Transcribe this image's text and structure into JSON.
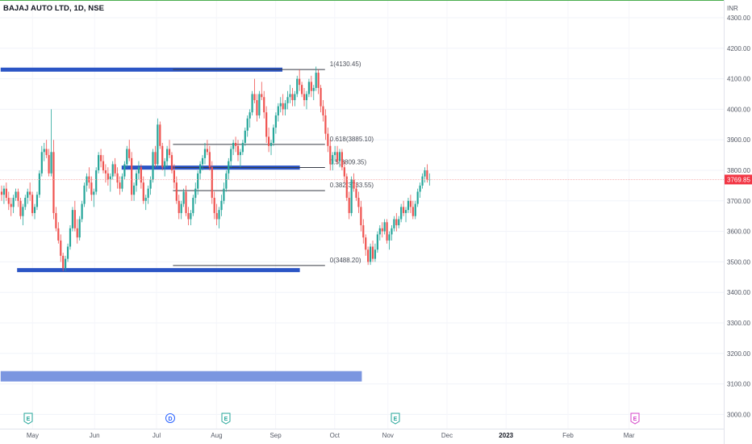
{
  "symbol_title": "BAJAJ AUTO LTD, 1D, NSE",
  "currency": "INR",
  "current_price": "3769.85",
  "colors": {
    "up": "#26a69a",
    "down": "#ef5350",
    "level_line": "#2b55c5",
    "lower_band": "#7b96e0",
    "fib_line": "#363a45",
    "price_line": "#f4a0a0",
    "price_badge": "#f23645",
    "event_green": "#26a69a",
    "event_blue": "#2962ff",
    "event_pink": "#d445c8"
  },
  "chart_data": {
    "type": "candlestick",
    "y_axis": {
      "min": 2980,
      "max": 4360,
      "ticks": [
        4300,
        4200,
        4100,
        4000,
        3900,
        3800,
        3700,
        3600,
        3500,
        3400,
        3300,
        3200,
        3100,
        3000
      ],
      "tick_labels": [
        "4300.00",
        "4200.00",
        "4100.00",
        "4000.00",
        "3900.00",
        "3800.00",
        "3700.00",
        "3600.00",
        "3500.00",
        "3400.00",
        "3300.00",
        "3200.00",
        "3100.00",
        "3000.00"
      ]
    },
    "x_axis": {
      "labels": [
        "May",
        "Jun",
        "Jul",
        "Aug",
        "Sep",
        "Oct",
        "Nov",
        "Dec",
        "2023",
        "Feb",
        "Mar"
      ],
      "bold": [
        false,
        false,
        false,
        false,
        false,
        false,
        false,
        false,
        true,
        false,
        false
      ],
      "bar_index": [
        32,
        96,
        160,
        222,
        283,
        344,
        399,
        460,
        521,
        585,
        648
      ]
    },
    "candles": [
      [
        3730,
        3750,
        3700,
        3720
      ],
      [
        3720,
        3750,
        3690,
        3740
      ],
      [
        3740,
        3760,
        3700,
        3710
      ],
      [
        3710,
        3730,
        3670,
        3690
      ],
      [
        3690,
        3710,
        3650,
        3680
      ],
      [
        3680,
        3720,
        3660,
        3710
      ],
      [
        3710,
        3740,
        3700,
        3730
      ],
      [
        3730,
        3740,
        3680,
        3700
      ],
      [
        3700,
        3710,
        3640,
        3650
      ],
      [
        3650,
        3690,
        3620,
        3680
      ],
      [
        3680,
        3720,
        3670,
        3710
      ],
      [
        3710,
        3740,
        3690,
        3730
      ],
      [
        3730,
        3760,
        3700,
        3720
      ],
      [
        3720,
        3730,
        3650,
        3660
      ],
      [
        3660,
        3690,
        3640,
        3680
      ],
      [
        3680,
        3730,
        3670,
        3720
      ],
      [
        3720,
        3800,
        3710,
        3790
      ],
      [
        3790,
        3880,
        3780,
        3860
      ],
      [
        3860,
        3890,
        3830,
        3870
      ],
      [
        3870,
        3900,
        3840,
        3850
      ],
      [
        3850,
        3870,
        3780,
        3790
      ],
      [
        3790,
        4000,
        3780,
        3860
      ],
      [
        3860,
        3900,
        3640,
        3660
      ],
      [
        3660,
        3680,
        3600,
        3610
      ],
      [
        3610,
        3630,
        3560,
        3570
      ],
      [
        3570,
        3590,
        3500,
        3520
      ],
      [
        3520,
        3530,
        3470,
        3480
      ],
      [
        3480,
        3520,
        3470,
        3510
      ],
      [
        3510,
        3560,
        3500,
        3550
      ],
      [
        3550,
        3620,
        3540,
        3610
      ],
      [
        3610,
        3680,
        3600,
        3670
      ],
      [
        3670,
        3700,
        3600,
        3610
      ],
      [
        3610,
        3640,
        3560,
        3580
      ],
      [
        3580,
        3650,
        3570,
        3640
      ],
      [
        3640,
        3700,
        3630,
        3690
      ],
      [
        3690,
        3760,
        3680,
        3750
      ],
      [
        3750,
        3790,
        3730,
        3780
      ],
      [
        3780,
        3810,
        3740,
        3760
      ],
      [
        3760,
        3780,
        3700,
        3720
      ],
      [
        3720,
        3740,
        3680,
        3730
      ],
      [
        3730,
        3810,
        3720,
        3800
      ],
      [
        3800,
        3860,
        3790,
        3850
      ],
      [
        3850,
        3870,
        3810,
        3830
      ],
      [
        3830,
        3850,
        3790,
        3800
      ],
      [
        3800,
        3820,
        3760,
        3790
      ],
      [
        3790,
        3810,
        3750,
        3770
      ],
      [
        3770,
        3790,
        3730,
        3780
      ],
      [
        3780,
        3830,
        3770,
        3820
      ],
      [
        3820,
        3840,
        3780,
        3790
      ],
      [
        3790,
        3810,
        3740,
        3760
      ],
      [
        3760,
        3780,
        3720,
        3740
      ],
      [
        3740,
        3790,
        3730,
        3780
      ],
      [
        3780,
        3830,
        3770,
        3820
      ],
      [
        3820,
        3880,
        3810,
        3870
      ],
      [
        3870,
        3900,
        3830,
        3840
      ],
      [
        3840,
        3860,
        3700,
        3720
      ],
      [
        3720,
        3760,
        3700,
        3750
      ],
      [
        3750,
        3800,
        3730,
        3790
      ],
      [
        3790,
        3830,
        3770,
        3810
      ],
      [
        3810,
        3820,
        3740,
        3760
      ],
      [
        3760,
        3780,
        3690,
        3700
      ],
      [
        3700,
        3720,
        3670,
        3710
      ],
      [
        3710,
        3750,
        3690,
        3740
      ],
      [
        3740,
        3780,
        3720,
        3770
      ],
      [
        3770,
        3870,
        3760,
        3860
      ],
      [
        3860,
        3880,
        3810,
        3820
      ],
      [
        3820,
        3970,
        3810,
        3950
      ],
      [
        3950,
        3960,
        3870,
        3880
      ],
      [
        3880,
        3890,
        3800,
        3810
      ],
      [
        3810,
        3840,
        3780,
        3830
      ],
      [
        3830,
        3880,
        3810,
        3870
      ],
      [
        3870,
        3900,
        3840,
        3850
      ],
      [
        3850,
        3860,
        3790,
        3800
      ],
      [
        3800,
        3820,
        3740,
        3760
      ],
      [
        3760,
        3780,
        3690,
        3700
      ],
      [
        3700,
        3720,
        3640,
        3660
      ],
      [
        3660,
        3700,
        3640,
        3690
      ],
      [
        3690,
        3740,
        3680,
        3730
      ],
      [
        3730,
        3750,
        3650,
        3660
      ],
      [
        3660,
        3680,
        3620,
        3640
      ],
      [
        3640,
        3670,
        3620,
        3660
      ],
      [
        3660,
        3720,
        3650,
        3710
      ],
      [
        3710,
        3760,
        3690,
        3740
      ],
      [
        3740,
        3800,
        3720,
        3790
      ],
      [
        3790,
        3830,
        3770,
        3820
      ],
      [
        3820,
        3850,
        3800,
        3840
      ],
      [
        3840,
        3890,
        3820,
        3870
      ],
      [
        3870,
        3900,
        3850,
        3860
      ],
      [
        3860,
        3880,
        3800,
        3810
      ],
      [
        3810,
        3830,
        3690,
        3710
      ],
      [
        3710,
        3730,
        3640,
        3660
      ],
      [
        3660,
        3690,
        3620,
        3640
      ],
      [
        3640,
        3680,
        3610,
        3670
      ],
      [
        3670,
        3720,
        3650,
        3700
      ],
      [
        3700,
        3760,
        3690,
        3740
      ],
      [
        3740,
        3800,
        3730,
        3790
      ],
      [
        3790,
        3840,
        3770,
        3830
      ],
      [
        3830,
        3880,
        3810,
        3870
      ],
      [
        3870,
        3900,
        3850,
        3890
      ],
      [
        3890,
        3910,
        3860,
        3880
      ],
      [
        3880,
        3900,
        3830,
        3850
      ],
      [
        3850,
        3870,
        3810,
        3860
      ],
      [
        3860,
        3900,
        3850,
        3890
      ],
      [
        3890,
        3940,
        3880,
        3930
      ],
      [
        3930,
        3980,
        3910,
        3970
      ],
      [
        3970,
        4000,
        3940,
        3990
      ],
      [
        3990,
        4060,
        3980,
        4050
      ],
      [
        4050,
        4100,
        4020,
        4030
      ],
      [
        4030,
        4050,
        3960,
        3980
      ],
      [
        3980,
        4060,
        3970,
        4050
      ],
      [
        4050,
        4090,
        4030,
        4040
      ],
      [
        4040,
        4060,
        3970,
        3990
      ],
      [
        3990,
        4010,
        3890,
        3910
      ],
      [
        3910,
        3940,
        3860,
        3880
      ],
      [
        3880,
        3900,
        3850,
        3890
      ],
      [
        3890,
        3950,
        3880,
        3940
      ],
      [
        3940,
        3990,
        3920,
        3980
      ],
      [
        3980,
        4020,
        3960,
        4010
      ],
      [
        4010,
        4040,
        3990,
        4020
      ],
      [
        4020,
        4050,
        3980,
        4000
      ],
      [
        4000,
        4030,
        3980,
        4020
      ],
      [
        4020,
        4060,
        4000,
        4040
      ],
      [
        4040,
        4080,
        4020,
        4050
      ],
      [
        4050,
        4070,
        4010,
        4030
      ],
      [
        4030,
        4060,
        4010,
        4050
      ],
      [
        4050,
        4110,
        4040,
        4100
      ],
      [
        4100,
        4130,
        4060,
        4080
      ],
      [
        4080,
        4090,
        4040,
        4050
      ],
      [
        4050,
        4070,
        4010,
        4030
      ],
      [
        4030,
        4060,
        4000,
        4050
      ],
      [
        4050,
        4100,
        4040,
        4090
      ],
      [
        4090,
        4110,
        4040,
        4060
      ],
      [
        4060,
        4080,
        4030,
        4070
      ],
      [
        4070,
        4140,
        4060,
        4120
      ],
      [
        4120,
        4130,
        4050,
        4070
      ],
      [
        4070,
        4080,
        3990,
        4010
      ],
      [
        4010,
        4030,
        3960,
        3980
      ],
      [
        3980,
        4000,
        3900,
        3920
      ],
      [
        3920,
        3940,
        3860,
        3880
      ],
      [
        3880,
        3900,
        3800,
        3820
      ],
      [
        3820,
        3860,
        3800,
        3850
      ],
      [
        3850,
        3880,
        3830,
        3860
      ],
      [
        3860,
        3880,
        3820,
        3830
      ],
      [
        3830,
        3870,
        3810,
        3860
      ],
      [
        3860,
        3870,
        3800,
        3810
      ],
      [
        3810,
        3830,
        3760,
        3780
      ],
      [
        3780,
        3790,
        3700,
        3710
      ],
      [
        3710,
        3730,
        3640,
        3660
      ],
      [
        3660,
        3780,
        3650,
        3770
      ],
      [
        3770,
        3790,
        3730,
        3740
      ],
      [
        3740,
        3760,
        3700,
        3710
      ],
      [
        3710,
        3730,
        3660,
        3680
      ],
      [
        3680,
        3700,
        3600,
        3620
      ],
      [
        3620,
        3640,
        3560,
        3580
      ],
      [
        3580,
        3590,
        3520,
        3540
      ],
      [
        3540,
        3550,
        3490,
        3500
      ],
      [
        3500,
        3560,
        3490,
        3550
      ],
      [
        3550,
        3570,
        3500,
        3510
      ],
      [
        3510,
        3560,
        3500,
        3540
      ],
      [
        3540,
        3600,
        3530,
        3590
      ],
      [
        3590,
        3620,
        3570,
        3610
      ],
      [
        3610,
        3630,
        3580,
        3600
      ],
      [
        3600,
        3640,
        3590,
        3630
      ],
      [
        3630,
        3640,
        3560,
        3570
      ],
      [
        3570,
        3600,
        3540,
        3590
      ],
      [
        3590,
        3620,
        3570,
        3610
      ],
      [
        3610,
        3650,
        3600,
        3640
      ],
      [
        3640,
        3660,
        3600,
        3620
      ],
      [
        3620,
        3650,
        3610,
        3640
      ],
      [
        3640,
        3690,
        3630,
        3680
      ],
      [
        3680,
        3700,
        3650,
        3660
      ],
      [
        3660,
        3680,
        3630,
        3670
      ],
      [
        3670,
        3710,
        3660,
        3700
      ],
      [
        3700,
        3720,
        3660,
        3680
      ],
      [
        3680,
        3700,
        3640,
        3650
      ],
      [
        3650,
        3700,
        3640,
        3690
      ],
      [
        3690,
        3740,
        3680,
        3730
      ],
      [
        3730,
        3760,
        3710,
        3750
      ],
      [
        3750,
        3790,
        3740,
        3780
      ],
      [
        3780,
        3810,
        3760,
        3800
      ],
      [
        3800,
        3820,
        3760,
        3770
      ],
      [
        3770,
        3790,
        3750,
        3770
      ]
    ],
    "levels": [
      {
        "name": "resistance-top",
        "value": 4130,
        "from_bar": -1,
        "to_bar": 290
      },
      {
        "name": "mid-level",
        "value": 3809,
        "from_bar": 124,
        "to_bar": 308
      },
      {
        "name": "support-bottom",
        "value": 3473,
        "from_bar": 16,
        "to_bar": 308
      }
    ],
    "lower_band": {
      "top": 3142,
      "bottom": 3108,
      "from_bar": -1,
      "to_bar": 372
    },
    "fibonacci": {
      "from_bar": 177,
      "to_bar": 334,
      "levels": [
        {
          "ratio_label": "1(4130.45)",
          "value": 4130.45
        },
        {
          "ratio_label": "0.618(3885.10)",
          "value": 3885.1
        },
        {
          "ratio_label": "0.5(3809.35)",
          "value": 3809.35
        },
        {
          "ratio_label": "0.382(3733.55)",
          "value": 3733.55
        },
        {
          "ratio_label": "0(3488.20)",
          "value": 3488.2
        }
      ]
    },
    "events": [
      {
        "letter": "E",
        "kind": "earnings",
        "bar": 17,
        "color": "event_green"
      },
      {
        "letter": "D",
        "kind": "dividend",
        "bar": 110,
        "color": "event_blue"
      },
      {
        "letter": "E",
        "kind": "earnings",
        "bar": 148,
        "color": "event_green"
      },
      {
        "letter": "E",
        "kind": "earnings",
        "bar": 261,
        "color": "event_green"
      },
      {
        "letter": "E",
        "kind": "earnings",
        "bar": 420,
        "color": "event_pink"
      }
    ],
    "grid": true
  }
}
